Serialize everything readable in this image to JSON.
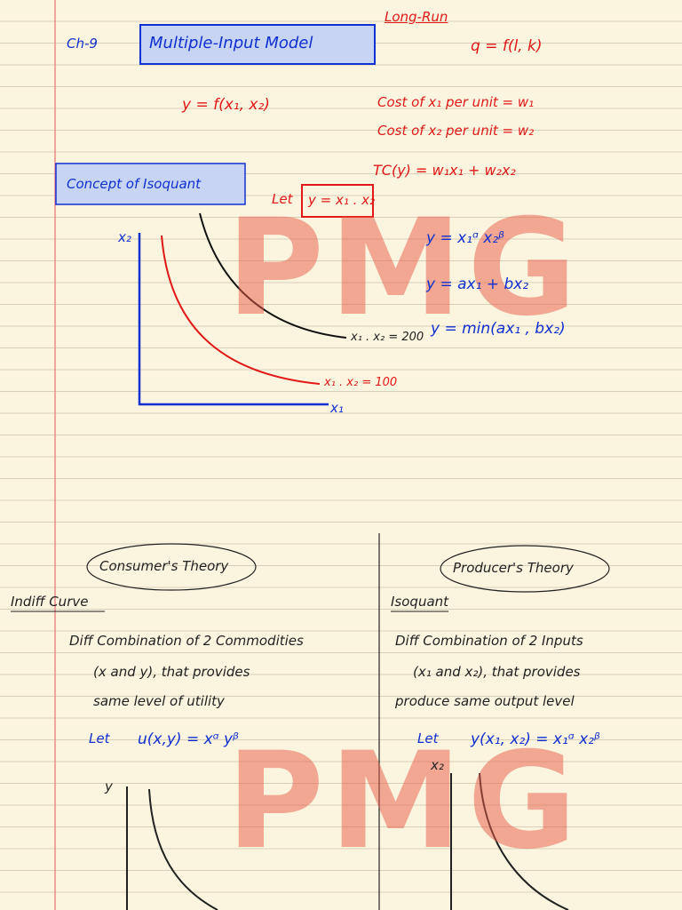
{
  "header": {
    "chapter": "Ch-9",
    "title": "Multiple-Input Model",
    "long_run": "Long-Run",
    "production": "q = f(l, k)"
  },
  "notes": {
    "function": "y = f(x₁, x₂)",
    "cost1": "Cost of x₁ per unit = w₁",
    "cost2": "Cost of x₂ per unit = w₂",
    "total_cost": "TC(y) = w₁x₁ + w₂x₂"
  },
  "isoquant": {
    "heading": "Concept of Isoquant",
    "let": "Let",
    "function": "y = x₁ . x₂",
    "y_axis": "x₂",
    "x_axis": "x₁",
    "curve_high": "x₁ . x₂ = 200",
    "curve_low": "x₁ . x₂ = 100",
    "forms": [
      "y = x₁ᵅ x₂ᵝ",
      "y = ax₁ + bx₂",
      "y = min(ax₁ , bx₂)"
    ]
  },
  "consumer": {
    "heading": "Consumer's Theory",
    "term": "Indiff Curve",
    "lines": [
      "Diff Combination of 2 Commodities",
      "(x and y), that provides",
      "same level of utility"
    ],
    "let": "Let",
    "function": "u(x,y) = xᵅ yᵝ",
    "y_axis": "y"
  },
  "producer": {
    "heading": "Producer's Theory",
    "term": "Isoquant",
    "lines": [
      "Diff Combination of 2 Inputs",
      "(x₁ and x₂), that provides",
      "produce same output level"
    ],
    "let": "Let",
    "function": "y(x₁, x₂) = x₁ᵅ x₂ᵝ",
    "y_axis": "x₂"
  },
  "watermark": "PMG"
}
